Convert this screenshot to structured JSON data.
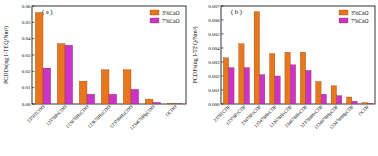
{
  "chart_data": [
    {
      "type": "bar",
      "title": "( a )",
      "y_label": "PCDDs(ng I-TEQ/Nm³)",
      "categories": [
        "2378TCDD",
        "12378PeCDD",
        "123478HxCDD",
        "123678HxCDD",
        "123789HxCDD",
        "1234678HpCDD",
        "OCDD"
      ],
      "series": [
        {
          "name": "3%CaO",
          "color": "#e8761e",
          "values": [
            0.056,
            0.037,
            0.014,
            0.021,
            0.021,
            0.003,
            0.0003
          ]
        },
        {
          "name": "7%CaO",
          "color": "#cc33cc",
          "values": [
            0.022,
            0.036,
            0.006,
            0.006,
            0.009,
            0.001,
            0.0001
          ]
        }
      ],
      "ylim": [
        0,
        0.06
      ],
      "yticks": [
        {
          "value": 0,
          "label": "0.00"
        },
        {
          "value": 0.01,
          "label": "0.01"
        },
        {
          "value": 0.02,
          "label": "0.02"
        },
        {
          "value": 0.03,
          "label": "0.03"
        },
        {
          "value": 0.04,
          "label": "0.04"
        },
        {
          "value": 0.05,
          "label": "0.05"
        },
        {
          "value": 0.06,
          "label": "0.06"
        }
      ],
      "legend": "upper right"
    },
    {
      "type": "bar",
      "title": "( b )",
      "y_label": "PCDFs(ng I-TEQ/Nm³)",
      "categories": [
        "2378TCDF",
        "12378PeCDF",
        "23478PeCDF",
        "123478HxCDF",
        "123678HxCDF",
        "234678HxCDF",
        "123789HxCDF",
        "1234678HpCDF",
        "1234789HpCDF",
        "OCDF"
      ],
      "series": [
        {
          "name": "3%CaO",
          "color": "#e8761e",
          "values": [
            0.0033,
            0.0043,
            0.0066,
            0.0036,
            0.0037,
            0.0037,
            0.0016,
            0.0013,
            0.0005,
            0.0001
          ]
        },
        {
          "name": "7%CaO",
          "color": "#cc33cc",
          "values": [
            0.0026,
            0.0026,
            0.0021,
            0.002,
            0.0028,
            0.0024,
            0.0007,
            0.0006,
            0.0002,
            5e-05
          ]
        }
      ],
      "ylim": [
        0,
        0.007
      ],
      "yticks": [
        {
          "value": 0,
          "label": "0.000"
        },
        {
          "value": 0.001,
          "label": "0.001"
        },
        {
          "value": 0.002,
          "label": "0.002"
        },
        {
          "value": 0.003,
          "label": "0.003"
        },
        {
          "value": 0.004,
          "label": "0.004"
        },
        {
          "value": 0.005,
          "label": "0.005"
        },
        {
          "value": 0.006,
          "label": "0.006"
        },
        {
          "value": 0.007,
          "label": "0.007"
        }
      ],
      "legend": "upper right"
    }
  ]
}
